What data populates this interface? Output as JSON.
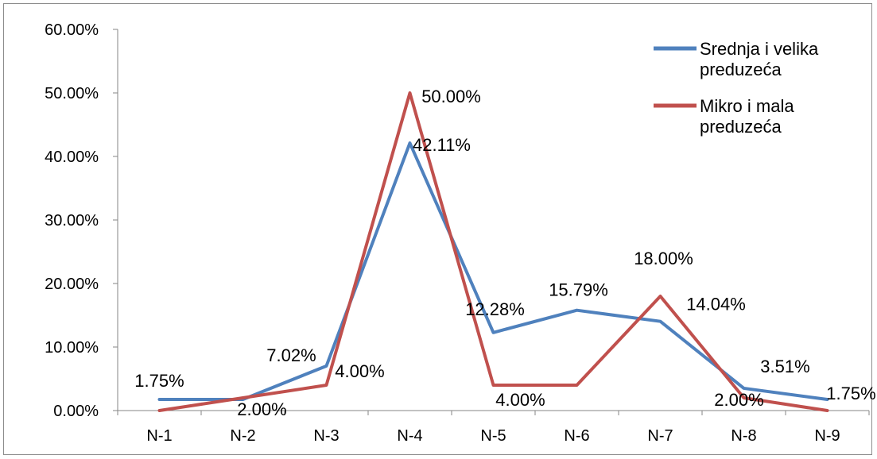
{
  "chart_data": {
    "type": "line",
    "categories": [
      "N-1",
      "N-2",
      "N-3",
      "N-4",
      "N-5",
      "N-6",
      "N-7",
      "N-8",
      "N-9"
    ],
    "y_ticks": [
      "0.00%",
      "10.00%",
      "20.00%",
      "30.00%",
      "40.00%",
      "50.00%",
      "60.00%"
    ],
    "ylim": [
      0,
      60
    ],
    "legend_position": "top-right",
    "grid": false,
    "series": [
      {
        "name": "Srednja i velika preduzeća",
        "legend_lines": [
          "Srednja i velika",
          "preduzeća"
        ],
        "color": "#4f81bd",
        "values": [
          1.75,
          1.75,
          7.02,
          42.11,
          12.28,
          15.79,
          14.04,
          3.51,
          1.75
        ],
        "labels": [
          "1.75%",
          null,
          "7.02%",
          "42.11%",
          "12.28%",
          "15.79%",
          "14.04%",
          "3.51%",
          "1.75%"
        ]
      },
      {
        "name": "Mikro i mala preduzeća",
        "legend_lines": [
          "Mikro i mala",
          "preduzeća"
        ],
        "color": "#c0504d",
        "values": [
          0,
          2.0,
          4.0,
          50.0,
          4.0,
          4.0,
          18.0,
          2.0,
          0
        ],
        "labels": [
          null,
          "2.00%",
          "4.00%",
          "50.00%",
          "4.00%",
          null,
          "18.00%",
          "2.00%",
          null
        ]
      }
    ]
  }
}
